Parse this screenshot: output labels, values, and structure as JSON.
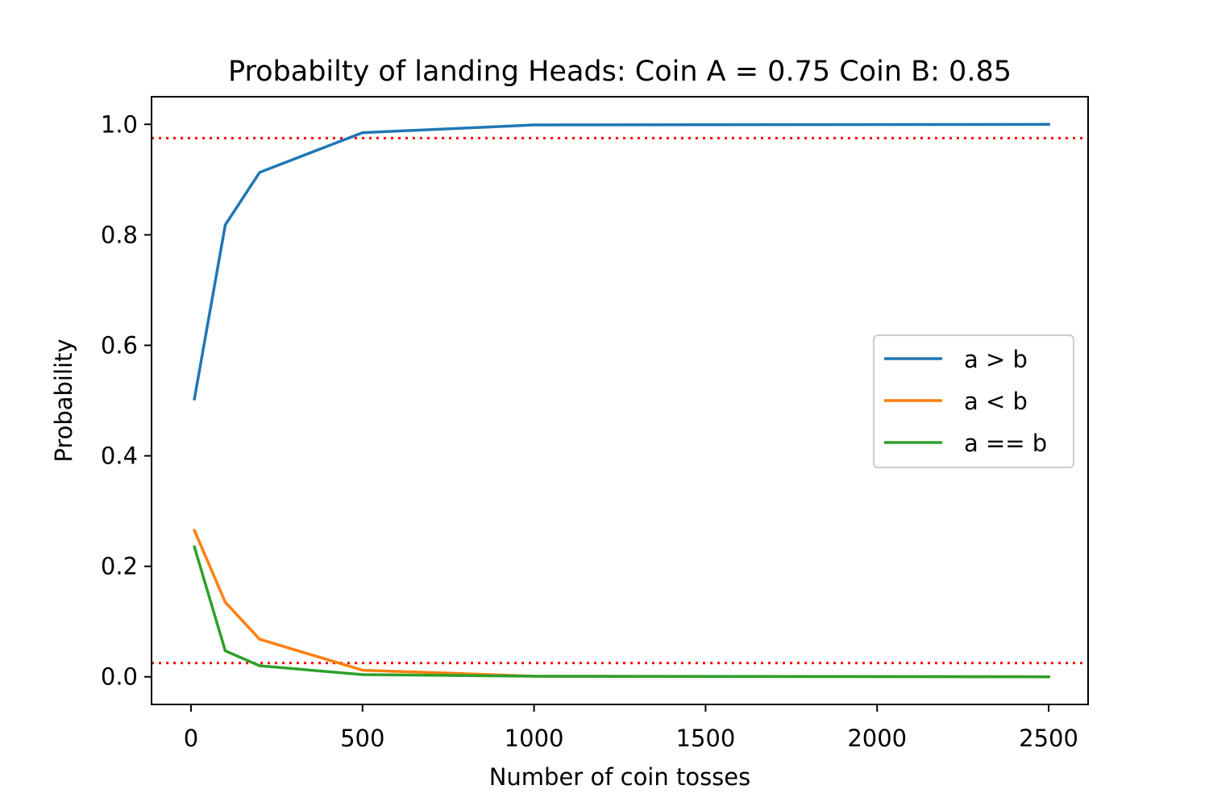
{
  "chart_data": {
    "type": "line",
    "title": "Probabilty of landing Heads: Coin A = 0.75 Coin B: 0.85",
    "xlabel": "Number of coin tosses",
    "ylabel": "Probability",
    "xlim": [
      -115,
      2615
    ],
    "ylim": [
      -0.05,
      1.05
    ],
    "xticks": [
      0,
      500,
      1000,
      1500,
      2000,
      2500
    ],
    "xtick_labels": [
      "0",
      "500",
      "1000",
      "1500",
      "2000",
      "2500"
    ],
    "yticks": [
      0.0,
      0.2,
      0.4,
      0.6,
      0.8,
      1.0
    ],
    "ytick_labels": [
      "0.0",
      "0.2",
      "0.4",
      "0.6",
      "0.8",
      "1.0"
    ],
    "grid": false,
    "legend_position": "center-right",
    "x": [
      10,
      100,
      200,
      500,
      1000,
      2500
    ],
    "series": [
      {
        "name": "a > b",
        "color": "#1f77b4",
        "values": [
          0.503,
          0.818,
          0.913,
          0.985,
          0.999,
          1.0
        ]
      },
      {
        "name": "a < b",
        "color": "#ff7f0e",
        "values": [
          0.265,
          0.135,
          0.068,
          0.012,
          0.001,
          0.0
        ]
      },
      {
        "name": "a == b",
        "color": "#2ca02c",
        "values": [
          0.235,
          0.047,
          0.02,
          0.004,
          0.001,
          0.0
        ]
      }
    ],
    "reference_lines": [
      {
        "axis": "y",
        "value": 0.975,
        "color": "#ff0000",
        "style": "dotted"
      },
      {
        "axis": "y",
        "value": 0.025,
        "color": "#ff0000",
        "style": "dotted"
      }
    ]
  }
}
